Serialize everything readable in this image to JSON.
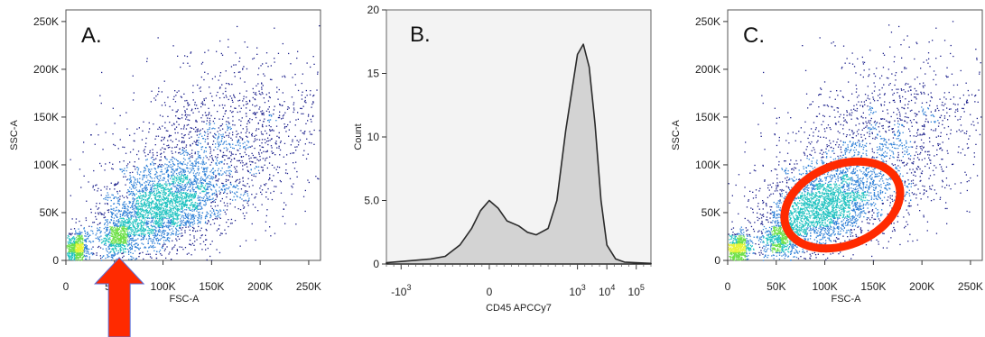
{
  "chart_data": [
    {
      "id": "A",
      "type": "scatter",
      "panel_label": "A.",
      "xlabel": "FSC-A",
      "ylabel": "SSC-A",
      "xlim": [
        0,
        262144
      ],
      "ylim": [
        0,
        262144
      ],
      "x_ticks": [
        {
          "value": 0,
          "label": "0"
        },
        {
          "value": 50000,
          "label": "50K"
        },
        {
          "value": 100000,
          "label": "100K"
        },
        {
          "value": 150000,
          "label": "150K"
        },
        {
          "value": 200000,
          "label": "200K"
        },
        {
          "value": 250000,
          "label": "250K"
        }
      ],
      "y_ticks": [
        {
          "value": 0,
          "label": "0"
        },
        {
          "value": 50000,
          "label": "50K"
        },
        {
          "value": 100000,
          "label": "100K"
        },
        {
          "value": 150000,
          "label": "150K"
        },
        {
          "value": 200000,
          "label": "200K"
        },
        {
          "value": 250000,
          "label": "250K"
        }
      ],
      "density_clusters": [
        {
          "x": 10000,
          "y": 12000,
          "sx": 6000,
          "sy": 8000,
          "weight": 0.12
        },
        {
          "x": 55000,
          "y": 25000,
          "sx": 9000,
          "sy": 9000,
          "weight": 0.08
        },
        {
          "x": 95000,
          "y": 55000,
          "sx": 32000,
          "sy": 22000,
          "weight": 0.45
        },
        {
          "x": 150000,
          "y": 110000,
          "sx": 55000,
          "sy": 45000,
          "weight": 0.35
        }
      ],
      "colormap": [
        "#1b1f8a",
        "#2d7fd6",
        "#22c3c1",
        "#6fe04a",
        "#e8f53a"
      ],
      "annotations": [
        {
          "type": "arrow",
          "color": "#ff2a00",
          "direction": "up",
          "points_to_x": 55000
        }
      ]
    },
    {
      "id": "B",
      "type": "area",
      "panel_label": "B.",
      "xlabel": "CD45 APCCy7",
      "ylabel": "Count",
      "ylim": [
        0,
        20
      ],
      "x_scale": "biexponential",
      "x_range_decades": [
        -3.5,
        5.5
      ],
      "x_ticks": [
        {
          "decade": -3,
          "base": "-10",
          "exp": "3"
        },
        {
          "decade": 0,
          "base": "0",
          "exp": ""
        },
        {
          "decade": 3,
          "base": "10",
          "exp": "3"
        },
        {
          "decade": 4,
          "base": "10",
          "exp": "4"
        },
        {
          "decade": 5,
          "base": "10",
          "exp": "5"
        }
      ],
      "y_ticks": [
        {
          "value": 0,
          "label": "0"
        },
        {
          "value": 5,
          "label": "5.0"
        },
        {
          "value": 10,
          "label": "10"
        },
        {
          "value": 15,
          "label": "15"
        },
        {
          "value": 20,
          "label": "20"
        }
      ],
      "x": [
        -3.5,
        -3,
        -2.5,
        -2,
        -1.5,
        -1,
        -0.6,
        -0.3,
        0,
        0.3,
        0.6,
        1,
        1.3,
        1.6,
        2,
        2.3,
        2.6,
        2.8,
        3,
        3.2,
        3.4,
        3.6,
        3.8,
        4,
        4.3,
        4.6,
        5,
        5.5
      ],
      "values": [
        0.1,
        0.2,
        0.3,
        0.4,
        0.6,
        1.5,
        2.8,
        4.2,
        5.0,
        4.4,
        3.4,
        3.0,
        2.5,
        2.3,
        2.8,
        5.0,
        10.5,
        13.5,
        16.5,
        17.3,
        15.5,
        11.0,
        5.0,
        1.5,
        0.4,
        0.15,
        0.1,
        0.05
      ],
      "fill": "#d3d3d3",
      "stroke": "#2a2a2a"
    },
    {
      "id": "C",
      "type": "scatter",
      "panel_label": "C.",
      "xlabel": "FSC-A",
      "ylabel": "SSC-A",
      "xlim": [
        0,
        262144
      ],
      "ylim": [
        0,
        262144
      ],
      "x_ticks": [
        {
          "value": 0,
          "label": "0"
        },
        {
          "value": 50000,
          "label": "50K"
        },
        {
          "value": 100000,
          "label": "100K"
        },
        {
          "value": 150000,
          "label": "150K"
        },
        {
          "value": 200000,
          "label": "200K"
        },
        {
          "value": 250000,
          "label": "250K"
        }
      ],
      "y_ticks": [
        {
          "value": 0,
          "label": "0"
        },
        {
          "value": 50000,
          "label": "50K"
        },
        {
          "value": 100000,
          "label": "100K"
        },
        {
          "value": 150000,
          "label": "150K"
        },
        {
          "value": 200000,
          "label": "200K"
        },
        {
          "value": 250000,
          "label": "250K"
        }
      ],
      "density_clusters": [
        {
          "x": 10000,
          "y": 12000,
          "sx": 6000,
          "sy": 8000,
          "weight": 0.12
        },
        {
          "x": 55000,
          "y": 25000,
          "sx": 9000,
          "sy": 9000,
          "weight": 0.08
        },
        {
          "x": 95000,
          "y": 55000,
          "sx": 32000,
          "sy": 22000,
          "weight": 0.45
        },
        {
          "x": 150000,
          "y": 110000,
          "sx": 55000,
          "sy": 45000,
          "weight": 0.35
        }
      ],
      "colormap": [
        "#1b1f8a",
        "#2d7fd6",
        "#22c3c1",
        "#6fe04a",
        "#e8f53a"
      ],
      "gate": {
        "type": "ellipse",
        "center_x": 118000,
        "center_y": 58000,
        "radius_x": 62000,
        "radius_y": 42000,
        "rotation_deg": -22,
        "color": "#ff2a00"
      }
    }
  ]
}
